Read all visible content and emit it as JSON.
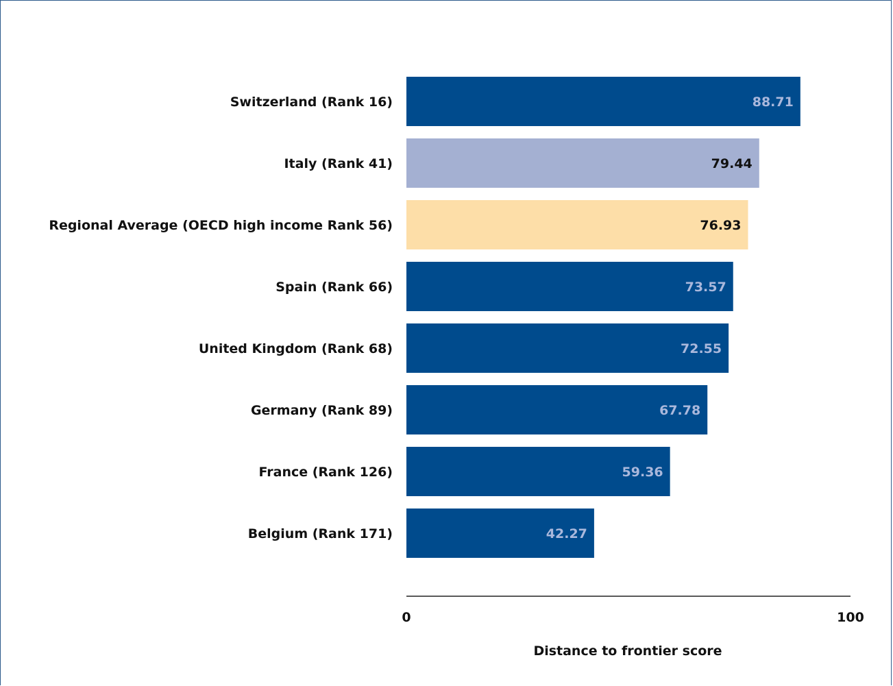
{
  "chart_data": {
    "type": "bar",
    "orientation": "horizontal",
    "categories": [
      "Switzerland (Rank 16)",
      "Italy (Rank 41)",
      "Regional Average (OECD high income Rank 56)",
      "Spain (Rank 66)",
      "United Kingdom (Rank 68)",
      "Germany (Rank 89)",
      "France (Rank 126)",
      "Belgium (Rank 171)"
    ],
    "values": [
      88.71,
      79.44,
      76.93,
      73.57,
      72.55,
      67.78,
      59.36,
      42.27
    ],
    "value_labels": [
      "88.71",
      "79.44",
      "76.93",
      "73.57",
      "72.55",
      "67.78",
      "59.36",
      "42.27"
    ],
    "bar_colors": [
      "#004b8d",
      "#a4b0d2",
      "#fddea8",
      "#004b8d",
      "#004b8d",
      "#004b8d",
      "#004b8d",
      "#004b8d"
    ],
    "label_colors": [
      "#aab8dc",
      "#111111",
      "#111111",
      "#aab8dc",
      "#aab8dc",
      "#aab8dc",
      "#aab8dc",
      "#aab8dc"
    ],
    "xlim": [
      0,
      100
    ],
    "xticks": [
      "0",
      "100"
    ],
    "xlabel": "Distance to frontier score",
    "title": "",
    "grid": false
  }
}
